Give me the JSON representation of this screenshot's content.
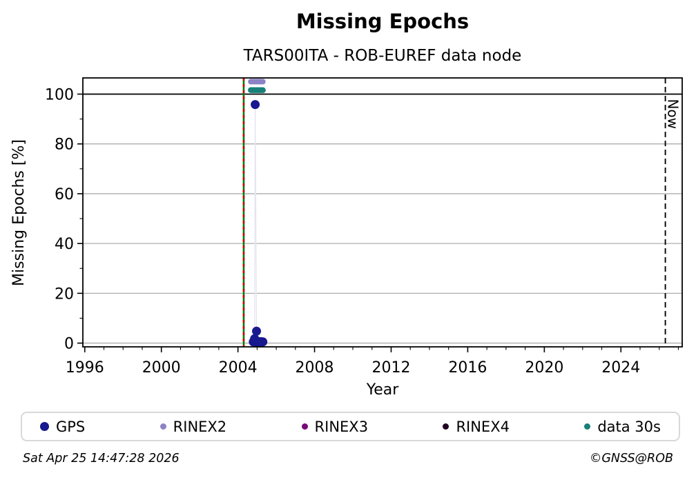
{
  "header": {
    "title": "Missing Epochs",
    "subtitle": "TARS00ITA - ROB-EUREF data node"
  },
  "footer": {
    "timestamp": "Sat Apr 25 14:47:28 2026",
    "copyright": "©GNSS@ROB"
  },
  "legend": {
    "items": [
      {
        "label": "GPS",
        "color": "#18188F",
        "size": 13
      },
      {
        "label": "RINEX2",
        "color": "#8C82C6",
        "size": 9
      },
      {
        "label": "RINEX3",
        "color": "#770B77",
        "size": 9
      },
      {
        "label": "RINEX4",
        "color": "#220523",
        "size": 9
      },
      {
        "label": "data 30s",
        "color": "#178078",
        "size": 9
      }
    ]
  },
  "chart_data": {
    "type": "scatter",
    "title": "Missing Epochs",
    "subtitle": "TARS00ITA - ROB-EUREF data node",
    "xlabel": "Year",
    "ylabel": "Missing Epochs [%]",
    "xlim": [
      1995.9,
      2027.2
    ],
    "ylim": [
      -1.5,
      106.5
    ],
    "xticks_major": [
      1996,
      2000,
      2004,
      2008,
      2012,
      2016,
      2020,
      2024
    ],
    "xticks_minor_step": 1,
    "yticks_major": [
      0,
      20,
      40,
      60,
      80,
      100
    ],
    "yticks_minor": [
      10,
      30,
      50,
      70,
      90
    ],
    "grid": "horizontal-major",
    "legend_position": "bottom",
    "colors": {
      "grid": "#ADADAD",
      "frame": "#000000",
      "hline_100": "#000000"
    },
    "hline": 100,
    "vlines": [
      {
        "name": "data-start",
        "x": 2004.3,
        "style": "green-solid-red-dashed",
        "color_base": "#067B06",
        "color_dash": "#CC0000"
      },
      {
        "name": "now",
        "x": 2026.32,
        "style": "black-dashed",
        "color": "#000000",
        "label": "Now"
      }
    ],
    "series": [
      {
        "name": "GPS",
        "color": "#18188F",
        "marker_r": 6.5,
        "line": {
          "color": "#E4E4F2",
          "width": 1.3,
          "points": [
            [
              2004.87,
              0.5
            ],
            [
              2004.9,
              95.8
            ],
            [
              2004.97,
              4.8
            ],
            [
              2004.97,
              0.5
            ]
          ]
        },
        "points": [
          [
            2004.9,
            95.8
          ],
          [
            2004.97,
            4.8
          ],
          [
            2004.87,
            1.8
          ],
          [
            2004.8,
            0.5
          ],
          [
            2004.84,
            0.7
          ],
          [
            2004.88,
            0.4
          ],
          [
            2004.92,
            0.8
          ],
          [
            2004.96,
            0.5
          ],
          [
            2005.0,
            0.4
          ],
          [
            2005.04,
            0.6
          ],
          [
            2005.08,
            0.4
          ],
          [
            2005.12,
            0.5
          ],
          [
            2005.16,
            0.4
          ],
          [
            2005.2,
            0.6
          ],
          [
            2005.24,
            0.4
          ],
          [
            2005.3,
            0.5
          ]
        ]
      },
      {
        "name": "RINEX2",
        "color": "#8C82C6",
        "marker_r": 4,
        "bands": [
          {
            "x1": 2004.67,
            "x2": 2005.3,
            "y": 105.0
          }
        ],
        "points": []
      },
      {
        "name": "RINEX3",
        "color": "#770B77",
        "marker_r": 4,
        "points": []
      },
      {
        "name": "RINEX4",
        "color": "#220523",
        "marker_r": 4,
        "points": []
      },
      {
        "name": "data 30s",
        "color": "#178078",
        "marker_r": 4.2,
        "bands": [
          {
            "x1": 2004.67,
            "x2": 2005.3,
            "y": 101.6
          }
        ],
        "points": []
      }
    ]
  }
}
